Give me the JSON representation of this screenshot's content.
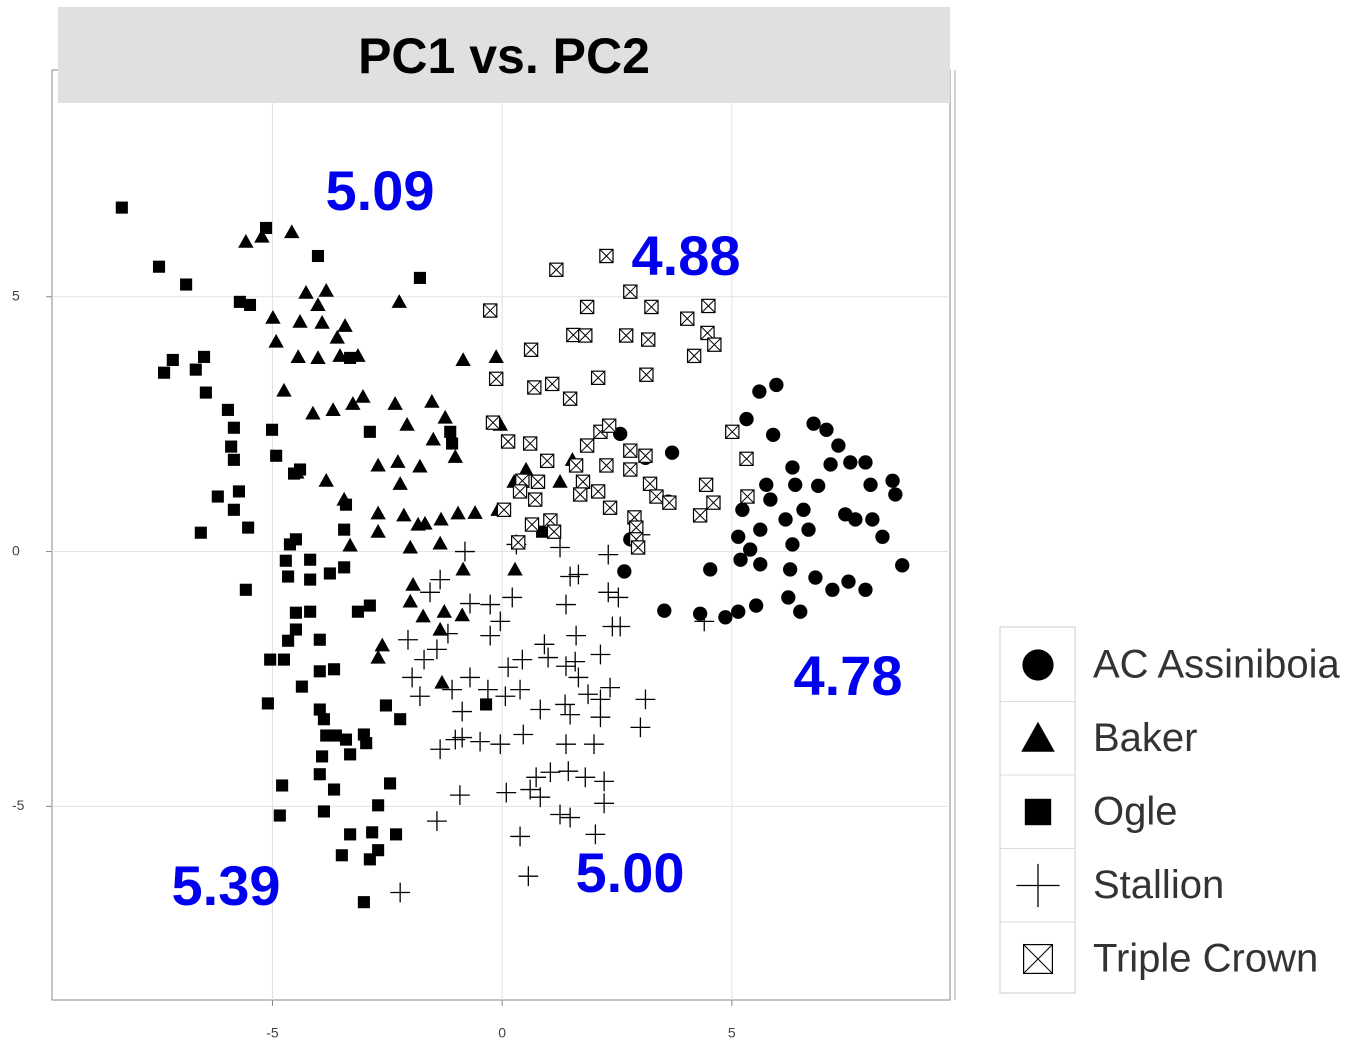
{
  "chart_data": {
    "type": "scatter",
    "title": "PC1 vs. PC2",
    "xlim": [
      -9.8,
      9.75
    ],
    "ylim": [
      -8.8,
      9.45
    ],
    "xticks": [
      -5,
      0,
      5
    ],
    "yticks": [
      -5,
      0,
      5
    ],
    "grid": true,
    "legend": "right",
    "annotations": [
      "5.09",
      "4.88",
      "4.78",
      "5.39",
      "5.00"
    ],
    "series": [
      {
        "name": "AC Assiniboia",
        "marker": "circle",
        "color": "#000000",
        "x": [
          5.6,
          5.97,
          5.32,
          5.9,
          6.78,
          7.06,
          7.32,
          6.32,
          7.15,
          7.58,
          7.91,
          5.75,
          6.38,
          6.88,
          8.5,
          8.56,
          8.02,
          5.23,
          5.84,
          6.56,
          7.47,
          7.69,
          8.06,
          5.62,
          6.17,
          6.67,
          8.28,
          5.14,
          5.4,
          6.32,
          5.19,
          5.62,
          6.27,
          6.82,
          7.54,
          7.91,
          8.71,
          4.53,
          6.23,
          5.14,
          4.86,
          4.31,
          3.53,
          5.53,
          6.49,
          7.19,
          2.66,
          3.7,
          3.62,
          2.57,
          2.79,
          3.12
        ],
        "y": [
          3.14,
          3.27,
          2.6,
          2.29,
          2.51,
          2.39,
          2.08,
          1.65,
          1.71,
          1.75,
          1.75,
          1.31,
          1.31,
          1.29,
          1.39,
          1.12,
          1.31,
          0.82,
          1.02,
          0.82,
          0.73,
          0.63,
          0.63,
          0.43,
          0.63,
          0.43,
          0.29,
          0.29,
          0.04,
          0.14,
          -0.16,
          -0.25,
          -0.35,
          -0.51,
          -0.59,
          -0.75,
          -0.27,
          -0.35,
          -0.9,
          -1.18,
          -1.29,
          -1.22,
          -1.16,
          -1.06,
          -1.18,
          -0.75,
          -0.39,
          1.94,
          0.98,
          2.31,
          0.24,
          1.84
        ]
      },
      {
        "name": "Baker",
        "marker": "triangle",
        "color": "#000000",
        "x": [
          -5.58,
          -5.23,
          -4.58,
          -2.24,
          -4.27,
          -3.83,
          -4.01,
          -4.99,
          -4.4,
          -3.92,
          -3.42,
          -3.59,
          -4.92,
          -4.44,
          -4.01,
          -3.53,
          -3.14,
          -0.85,
          -0.13,
          -4.75,
          -4.12,
          -3.68,
          -3.25,
          -3.03,
          -2.33,
          -2.07,
          -1.53,
          -1.24,
          -2.7,
          -2.27,
          -1.79,
          -1.5,
          -1.02,
          -4.47,
          -3.83,
          -3.44,
          -2.22,
          -0.04,
          0.26,
          0.52,
          -2.7,
          -2.14,
          -1.68,
          -1.33,
          -0.96,
          -0.59,
          -2.7,
          -3.31,
          -2.0,
          -1.35,
          -0.85,
          -1.94,
          -2.0,
          -1.72,
          -1.26,
          -1.35,
          -0.87,
          -2.7,
          -2.61,
          -1.31,
          1.26,
          1.53,
          -0.09,
          0.28,
          -1.83
        ],
        "y": [
          6.08,
          6.18,
          6.27,
          4.9,
          5.08,
          5.12,
          4.84,
          4.59,
          4.51,
          4.49,
          4.43,
          4.2,
          4.12,
          3.82,
          3.8,
          3.84,
          3.84,
          3.76,
          3.82,
          3.16,
          2.71,
          2.78,
          2.9,
          3.04,
          2.9,
          2.49,
          2.94,
          2.63,
          1.69,
          1.76,
          1.67,
          2.2,
          1.86,
          1.55,
          1.39,
          1.02,
          1.33,
          2.49,
          1.37,
          1.61,
          0.75,
          0.71,
          0.55,
          0.63,
          0.75,
          0.76,
          0.39,
          0.12,
          0.08,
          0.16,
          -0.35,
          -0.65,
          -0.98,
          -1.27,
          -1.18,
          -1.53,
          -1.25,
          -2.08,
          -1.84,
          -2.57,
          1.37,
          1.8,
          0.82,
          -0.35,
          0.53
        ]
      },
      {
        "name": "Ogle",
        "marker": "square",
        "color": "#000000",
        "x": [
          -8.28,
          -5.14,
          -4.01,
          -1.79,
          -7.47,
          -6.88,
          -5.71,
          -5.49,
          -7.17,
          -7.36,
          -6.67,
          -6.49,
          -6.45,
          -5.97,
          -5.84,
          -5.9,
          -5.84,
          -5.01,
          -4.92,
          -6.19,
          -5.73,
          -5.84,
          -5.53,
          -6.56,
          -4.53,
          -4.4,
          -5.58,
          -3.31,
          -2.88,
          -1.13,
          -1.09,
          -3.4,
          -3.44,
          -4.62,
          -4.49,
          -4.71,
          -4.66,
          -4.18,
          -4.18,
          -3.44,
          -3.75,
          -4.49,
          -4.18,
          -4.49,
          -3.97,
          -4.66,
          -5.05,
          -4.75,
          -5.1,
          -4.36,
          -3.97,
          -3.66,
          -3.97,
          -3.88,
          -3.83,
          -3.62,
          -3.92,
          -3.4,
          -3.01,
          -2.96,
          -3.31,
          -3.97,
          -3.66,
          -4.79,
          -4.84,
          -3.88,
          -2.7,
          -2.44,
          -3.31,
          -2.83,
          -2.31,
          -3.49,
          -2.88,
          -2.7,
          -3.01,
          -3.14,
          -2.88,
          -2.22,
          -2.53,
          -0.35,
          0.87
        ],
        "y": [
          6.75,
          6.35,
          5.8,
          5.37,
          5.59,
          5.24,
          4.9,
          4.84,
          3.76,
          3.51,
          3.57,
          3.82,
          3.12,
          2.78,
          2.43,
          2.06,
          1.8,
          2.39,
          1.88,
          1.08,
          1.18,
          0.82,
          0.47,
          0.37,
          1.53,
          1.61,
          -0.75,
          3.8,
          2.35,
          2.35,
          2.12,
          0.92,
          0.43,
          0.14,
          0.24,
          -0.18,
          -0.49,
          -0.16,
          -0.55,
          -0.31,
          -0.43,
          -1.2,
          -1.18,
          -1.53,
          -1.73,
          -1.75,
          -2.12,
          -2.12,
          -2.98,
          -2.65,
          -2.35,
          -2.31,
          -3.1,
          -3.29,
          -3.61,
          -3.61,
          -4.02,
          -3.69,
          -3.59,
          -3.76,
          -3.98,
          -4.37,
          -4.67,
          -4.59,
          -5.18,
          -5.1,
          -4.98,
          -4.55,
          -5.55,
          -5.51,
          -5.55,
          -5.96,
          -6.04,
          -5.86,
          -6.88,
          -1.18,
          -1.06,
          -3.29,
          -3.02,
          -3.0,
          0.39
        ]
      },
      {
        "name": "Stallion",
        "marker": "plus",
        "color": "#000000",
        "x": [
          -2.22,
          0.57,
          0.39,
          -1.42,
          -0.92,
          0.09,
          0.61,
          0.83,
          1.26,
          1.48,
          2.03,
          2.22,
          2.22,
          1.81,
          1.44,
          1.05,
          0.74,
          2.35,
          2.14,
          2.0,
          1.39,
          3.01,
          3.12,
          1.66,
          1.39,
          2.14,
          1.61,
          0.92,
          1.0,
          0.44,
          0.13,
          -0.26,
          -0.04,
          -0.26,
          0.22,
          -0.7,
          -1.18,
          -1.42,
          -2.05,
          -1.7,
          -1.96,
          -1.79,
          -1.09,
          -0.7,
          -0.31,
          0.07,
          0.39,
          0.83,
          1.37,
          1.87,
          2.14,
          -0.87,
          -0.87,
          -1.35,
          -1.02,
          -0.48,
          -0.04,
          0.46,
          1.48,
          1.59,
          2.31,
          2.31,
          2.53,
          2.4,
          2.57,
          1.48,
          1.66,
          1.39,
          -0.81,
          -1.35,
          -1.57,
          4.4,
          1.26,
          3.01,
          0.31
        ],
        "y": [
          -6.69,
          -6.37,
          -5.59,
          -5.29,
          -4.78,
          -4.73,
          -4.67,
          -4.82,
          -5.16,
          -5.22,
          -5.55,
          -4.94,
          -4.51,
          -4.43,
          -4.31,
          -4.33,
          -4.43,
          -2.67,
          -3.25,
          -3.78,
          -3.78,
          -3.45,
          -2.9,
          -2.47,
          -2.25,
          -2.02,
          -1.65,
          -1.82,
          -2.08,
          -2.12,
          -2.27,
          -1.65,
          -1.37,
          -1.04,
          -0.9,
          -1.02,
          -1.61,
          -1.92,
          -1.73,
          -2.12,
          -2.47,
          -2.84,
          -2.71,
          -2.47,
          -2.71,
          -2.84,
          -2.71,
          -3.1,
          -3.0,
          -2.8,
          -2.9,
          -3.14,
          -3.65,
          -3.88,
          -3.69,
          -3.73,
          -3.78,
          -3.59,
          -3.2,
          -2.16,
          -0.06,
          -0.8,
          -0.9,
          -1.47,
          -1.47,
          -0.49,
          -0.45,
          -1.04,
          0.0,
          -0.55,
          -0.8,
          -1.37,
          0.08,
          0.33,
          0.14
        ]
      },
      {
        "name": "Triple Crown",
        "marker": "boxx",
        "color": "#000000",
        "x": [
          1.18,
          2.27,
          2.79,
          3.25,
          4.03,
          4.49,
          4.47,
          4.62,
          4.18,
          1.85,
          -0.26,
          1.55,
          1.81,
          2.7,
          3.18,
          0.63,
          -0.13,
          0.7,
          1.09,
          1.48,
          2.09,
          3.14,
          -0.2,
          0.13,
          0.61,
          1.85,
          2.14,
          2.33,
          0.98,
          1.61,
          2.27,
          2.79,
          3.12,
          5.01,
          5.32,
          4.44,
          4.6,
          5.34,
          4.31,
          0.44,
          0.78,
          0.39,
          1.76,
          2.09,
          3.22,
          3.36,
          3.64,
          2.35,
          0.04,
          0.72,
          1.7,
          2.88,
          2.92,
          2.92,
          2.96,
          0.65,
          1.05,
          0.35,
          1.13,
          2.79
        ],
        "y": [
          5.53,
          5.8,
          5.1,
          4.8,
          4.57,
          4.82,
          4.29,
          4.06,
          3.84,
          4.8,
          4.73,
          4.25,
          4.24,
          4.24,
          4.16,
          3.96,
          3.39,
          3.22,
          3.29,
          3.0,
          3.41,
          3.47,
          2.53,
          2.16,
          2.12,
          2.08,
          2.35,
          2.47,
          1.78,
          1.69,
          1.69,
          1.98,
          1.88,
          2.35,
          1.82,
          1.31,
          0.96,
          1.08,
          0.71,
          1.39,
          1.37,
          1.18,
          1.37,
          1.18,
          1.33,
          1.08,
          0.96,
          0.86,
          0.82,
          1.02,
          1.12,
          0.67,
          0.47,
          0.24,
          0.08,
          0.53,
          0.61,
          0.18,
          0.39,
          1.61
        ]
      }
    ]
  }
}
